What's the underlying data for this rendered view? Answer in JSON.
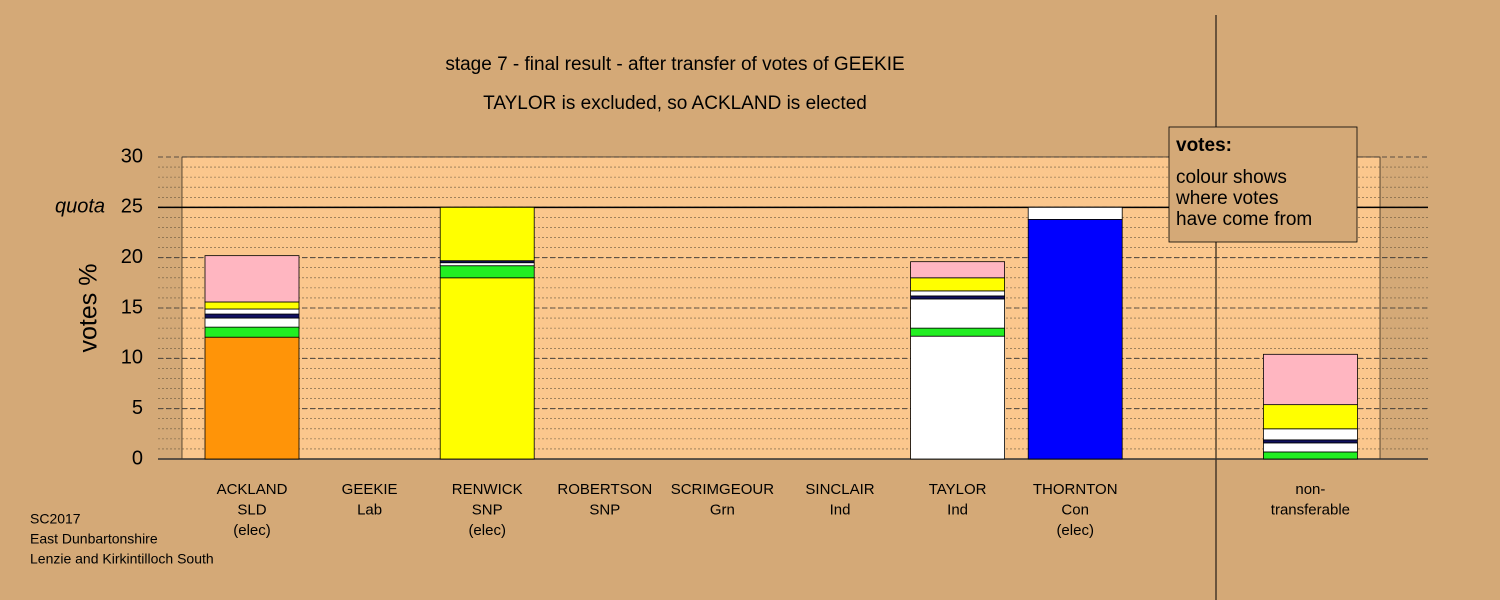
{
  "chart_data": {
    "type": "stacked_bar",
    "title": "stage 7 - final result - after transfer of votes of GEEKIE",
    "subtitle": "TAYLOR is excluded, so ACKLAND is elected",
    "y_label": "votes %",
    "quota": {
      "value": 25,
      "label": "quota"
    },
    "categories": [
      [
        "ACKLAND",
        "SLD",
        "(elec)"
      ],
      [
        "GEEKIE",
        "Lab"
      ],
      [
        "RENWICK",
        "SNP",
        "(elec)"
      ],
      [
        "ROBERTSON",
        "SNP"
      ],
      [
        "SCRIMGEOUR",
        "Grn"
      ],
      [
        "SINCLAIR",
        "Ind"
      ],
      [
        "TAYLOR",
        "Ind"
      ],
      [
        "THORNTON",
        "Con",
        "(elec)"
      ],
      null,
      [
        "non-",
        "transferable"
      ]
    ],
    "series": [
      {
        "colors": [
          "#ff9408",
          "#ffb6c1",
          "#ffff00",
          "#ffff00",
          "#22ee22",
          "#ffffff",
          "#ffffff",
          "#0000ff",
          null,
          "#ffffff"
        ],
        "values": [
          12.1,
          0,
          18.0,
          0,
          0,
          0,
          12.2,
          23.8,
          null,
          0
        ]
      },
      {
        "color": "#22ee22",
        "values": [
          1.0,
          0,
          1.2,
          0,
          0,
          0,
          0.8,
          0,
          null,
          0.7
        ]
      },
      {
        "color": "#ffffff",
        "values": [
          0.9,
          0,
          0.3,
          0,
          0,
          0,
          2.9,
          1.2,
          null,
          0.9
        ]
      },
      {
        "color": "#101060",
        "values": [
          0.4,
          0,
          0.2,
          0,
          0,
          0,
          0.3,
          0,
          null,
          0.3
        ]
      },
      {
        "color": "#ffffff",
        "values": [
          0.5,
          0,
          0,
          0,
          0,
          0,
          0.5,
          0,
          null,
          1.1
        ]
      },
      {
        "color": "#ffff00",
        "values": [
          0.7,
          0,
          5.3,
          0,
          0,
          0,
          1.3,
          0,
          null,
          2.4
        ]
      },
      {
        "color": "#ffb6c1",
        "values": [
          4.6,
          0,
          0,
          0,
          0,
          0,
          1.6,
          0,
          null,
          5.0
        ]
      }
    ],
    "ylim": [
      0,
      30
    ],
    "yticks": [
      0,
      5,
      10,
      15,
      20,
      25,
      30
    ],
    "minor_step": 1,
    "legend": {
      "title": "votes:",
      "lines": [
        "colour shows",
        "where votes",
        "have come from"
      ]
    },
    "footer": [
      "SC2017",
      "East Dunbartonshire",
      "Lenzie and Kirkintilloch South"
    ]
  }
}
